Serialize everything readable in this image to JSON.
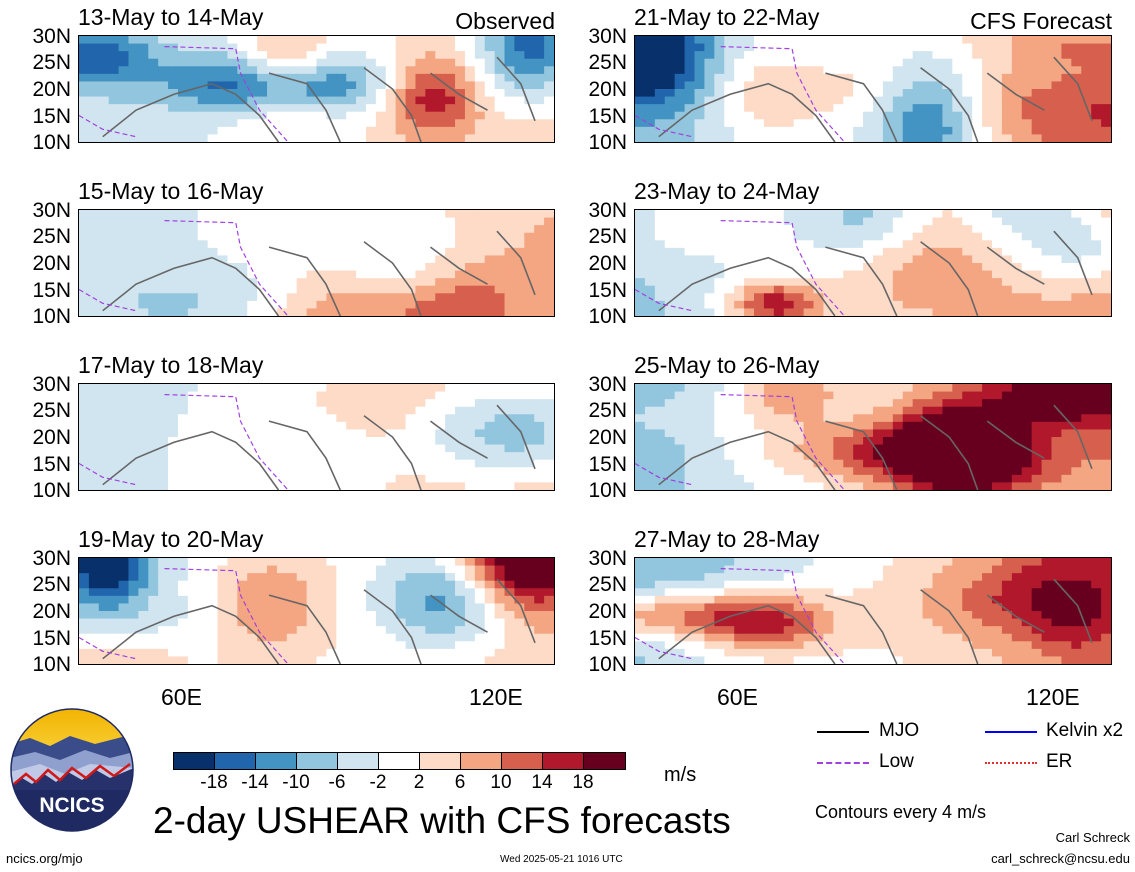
{
  "panels": [
    {
      "title": "13-May to 14-May",
      "tag": "Observed"
    },
    {
      "title": "15-May to 16-May",
      "tag": ""
    },
    {
      "title": "17-May to 18-May",
      "tag": ""
    },
    {
      "title": "19-May to 20-May",
      "tag": ""
    },
    {
      "title": "21-May to 22-May",
      "tag": "CFS Forecast"
    },
    {
      "title": "23-May to 24-May",
      "tag": ""
    },
    {
      "title": "25-May to 26-May",
      "tag": ""
    },
    {
      "title": "27-May to 28-May",
      "tag": ""
    }
  ],
  "lat_labels": [
    "30N",
    "25N",
    "20N",
    "15N",
    "10N"
  ],
  "lon_labels": [
    "60E",
    "120E"
  ],
  "colorbar": {
    "colors": [
      "#08306b",
      "#2166ac",
      "#4393c3",
      "#92c5de",
      "#d1e5f0",
      "#ffffff",
      "#fddbc7",
      "#f4a582",
      "#d6604d",
      "#b2182b",
      "#67001f"
    ],
    "labels": [
      "-18",
      "-14",
      "-10",
      "-6",
      "-2",
      "2",
      "6",
      "10",
      "14",
      "18"
    ],
    "unit": "m/s"
  },
  "legend": {
    "mjo": "MJO",
    "kelvin": "Kelvin x2",
    "low": "Low",
    "er": "ER",
    "colors": {
      "mjo": "#000000",
      "kelvin": "#0000ff",
      "low": "#a040e0",
      "er": "#e03030"
    }
  },
  "contour_note": "Contours every 4 m/s",
  "main_title": "2-day USHEAR with CFS forecasts",
  "logo_text": "NCICS",
  "footer": {
    "left": "ncics.org/mjo",
    "center": "Wed 2025-05-21 1016 UTC",
    "author": "Carl Schreck",
    "email": "carl_schreck@ncsu.edu"
  },
  "chart_data": {
    "type": "heatmap",
    "title": "2-day USHEAR with CFS forecasts",
    "unit": "m/s",
    "ylim": [
      "10N",
      "30N"
    ],
    "x_ticks": [
      "60E",
      "120E"
    ],
    "color_levels": [
      -18,
      -14,
      -10,
      -6,
      -2,
      2,
      6,
      10,
      14,
      18
    ]
  }
}
